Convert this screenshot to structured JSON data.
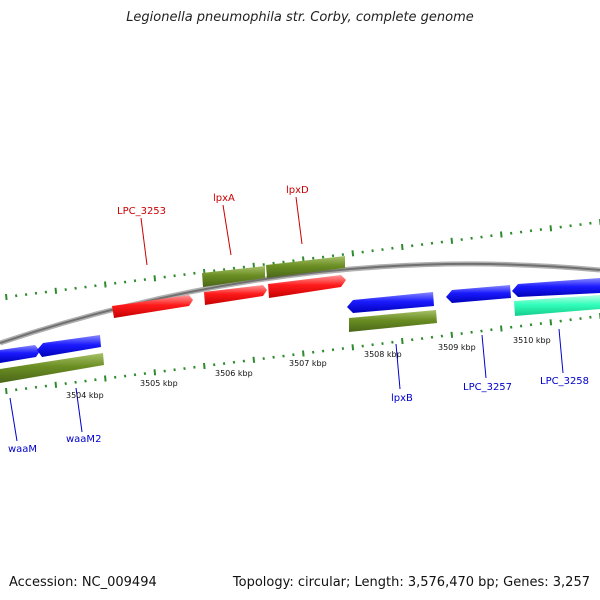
{
  "title": "Legionella pneumophila str. Corby, complete genome",
  "accession": "Accession: NC_009494",
  "summary": "Topology: circular; Length: 3,576,470 bp; Genes: 3,257",
  "colors": {
    "backbone": "#8c8c8c",
    "forward_cds": "#ff1a1a",
    "reverse_cds": "#1a1aff",
    "gene": "#6b8e23",
    "rna": "#33ffbb",
    "ticks": "#2e8b2e",
    "forward_label": "#cc0000",
    "reverse_label": "#0000cc"
  },
  "scale_labels": [
    "3504 kbp",
    "3505 kbp",
    "3506 kbp",
    "3507 kbp",
    "3508 kbp",
    "3509 kbp",
    "3510 kbp"
  ],
  "forward_labels": [
    "LPC_3253",
    "lpxA",
    "lpxD"
  ],
  "reverse_labels": [
    "waaM",
    "waaM2",
    "lpxB",
    "LPC_3257",
    "LPC_3258"
  ]
}
